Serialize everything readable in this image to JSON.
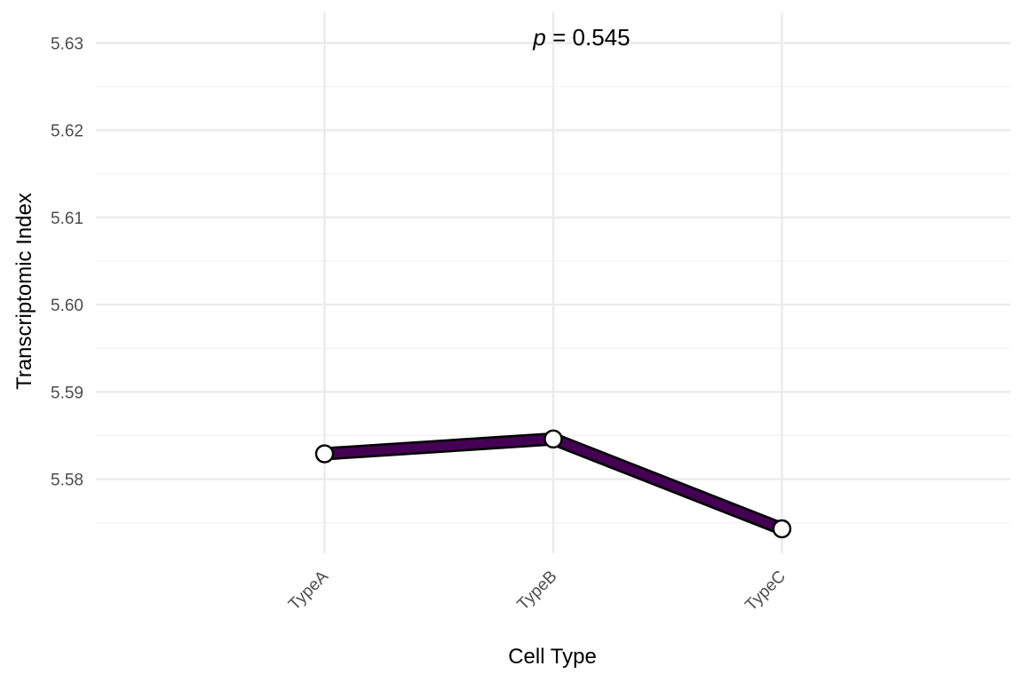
{
  "chart_data": {
    "type": "line",
    "xlabel": "Cell Type",
    "ylabel": "Transcriptomic Index",
    "categories": [
      "TypeA",
      "TypeB",
      "TypeC"
    ],
    "series": [
      {
        "values": [
          5.5829,
          5.5846,
          5.5743
        ]
      }
    ],
    "ylim": [
      5.5715,
      5.6335
    ],
    "yticks": [
      5.58,
      5.59,
      5.6,
      5.61,
      5.62,
      5.63
    ],
    "ytick_labels": [
      "5.58",
      "5.59",
      "5.60",
      "5.61",
      "5.62",
      "5.63"
    ],
    "annotation": {
      "prefix": "p",
      "text": " = 0.545"
    },
    "grid": true,
    "legend": "none",
    "line_color": "#440154",
    "point_fill": "#ffffff"
  }
}
